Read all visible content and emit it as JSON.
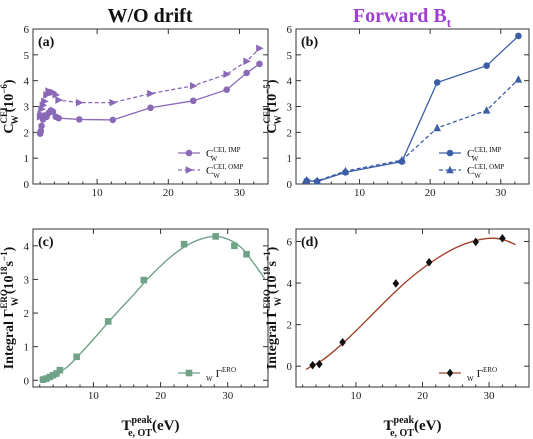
{
  "titles": {
    "left": "W/O drift",
    "right": "Forward B",
    "right_sub": "t"
  },
  "x_axis_label": {
    "main": "T",
    "sup": "peak",
    "sub": "e, OT",
    "unit": "(eV)"
  },
  "colors": {
    "purple": "#8a69b7",
    "title_purple": "#9c3fd2",
    "blue": "#3b5ea6",
    "green": "#6fa287",
    "brown": "#a0432c"
  },
  "chart_data": [
    {
      "type": "line",
      "panel": "(a)",
      "ylabel": {
        "main": "C",
        "sup": "CEI",
        "sub": "W",
        "unit": "(10",
        "exp": "−6",
        "close": ")"
      },
      "xlim": [
        1,
        34
      ],
      "ylim": [
        0,
        6
      ],
      "xticks": [
        10,
        20,
        30
      ],
      "yticks": [
        0,
        1,
        2,
        3,
        4,
        5,
        6
      ],
      "legend_position": "bottom-right",
      "series": [
        {
          "name": "C",
          "name_sup": "CEI, IMP",
          "name_sub": "W",
          "marker": "circle",
          "dash": false,
          "color": "#8a69b7",
          "x": [
            2.0,
            2.1,
            2.2,
            2.4,
            2.6,
            2.9,
            3.2,
            3.5,
            3.8,
            4.2,
            4.6,
            7.5,
            12.2,
            17.5,
            23.5,
            28.2,
            31.0,
            32.8
          ],
          "y": [
            1.95,
            2.05,
            2.25,
            2.5,
            2.65,
            2.6,
            2.75,
            2.85,
            2.8,
            2.6,
            2.55,
            2.5,
            2.48,
            2.95,
            3.22,
            3.65,
            4.3,
            4.65
          ]
        },
        {
          "name": "C",
          "name_sup": "CEI, OMP",
          "name_sub": "W",
          "marker": "triangle-right",
          "dash": true,
          "color": "#8a69b7",
          "x": [
            2.0,
            2.1,
            2.2,
            2.4,
            2.6,
            2.9,
            3.2,
            3.5,
            3.8,
            4.2,
            4.6,
            7.5,
            12.2,
            17.5,
            23.5,
            28.2,
            31.0,
            32.8
          ],
          "y": [
            2.6,
            2.7,
            2.9,
            3.05,
            3.2,
            3.45,
            3.6,
            3.55,
            3.55,
            3.45,
            3.25,
            3.15,
            3.15,
            3.5,
            3.8,
            4.25,
            4.75,
            5.25
          ]
        }
      ]
    },
    {
      "type": "line",
      "panel": "(b)",
      "ylabel": {
        "main": "C",
        "sup": "CEI",
        "sub": "W",
        "unit": "(10",
        "exp": "−5",
        "close": ")"
      },
      "xlim": [
        1,
        34
      ],
      "ylim": [
        0,
        6
      ],
      "xticks": [
        10,
        20,
        30
      ],
      "yticks": [
        0,
        1,
        2,
        3,
        4,
        5,
        6
      ],
      "legend_position": "bottom-right",
      "series": [
        {
          "name": "C",
          "name_sup": "CEI, IMP",
          "name_sub": "W",
          "marker": "circle",
          "dash": false,
          "color": "#3b5ea6",
          "x": [
            2.5,
            4.0,
            8.0,
            16.0,
            21.0,
            28.0,
            32.5
          ],
          "y": [
            0.12,
            0.1,
            0.45,
            0.87,
            3.93,
            4.58,
            5.73
          ]
        },
        {
          "name": "C",
          "name_sup": "CEI, OMP",
          "name_sub": "W",
          "marker": "triangle-up",
          "dash": true,
          "color": "#3b5ea6",
          "x": [
            2.5,
            4.0,
            8.0,
            16.0,
            21.0,
            28.0,
            32.5
          ],
          "y": [
            0.15,
            0.12,
            0.5,
            0.92,
            2.17,
            2.85,
            4.05
          ]
        }
      ]
    },
    {
      "type": "line",
      "panel": "(c)",
      "ylabel": {
        "main": "Integral Γ",
        "sup": "ERO",
        "sub": "W",
        "unit": "(10",
        "exp": "18",
        "close": "s",
        "exp2": "−1",
        "end": ")"
      },
      "xlim": [
        1,
        36
      ],
      "ylim": [
        -0.2,
        4.5
      ],
      "xticks": [
        10,
        20,
        30
      ],
      "yticks": [
        0,
        1,
        2,
        3,
        4
      ],
      "legend_position": "bottom-right",
      "series": [
        {
          "name": "Γ",
          "name_sup": "ERO",
          "name_sub": "W",
          "marker": "square",
          "dash": false,
          "color": "#6fa287",
          "x": [
            2.5,
            3.0,
            3.5,
            4.0,
            4.5,
            5.0,
            7.5,
            12.2,
            17.5,
            23.5,
            28.2,
            31.0,
            32.8
          ],
          "y": [
            0.02,
            0.05,
            0.1,
            0.15,
            0.2,
            0.3,
            0.7,
            1.75,
            2.98,
            4.05,
            4.28,
            4.0,
            3.75
          ],
          "curve_x": [
            2,
            4,
            6,
            8,
            10,
            12,
            14,
            16,
            18,
            20,
            22,
            24,
            26,
            28,
            30,
            32,
            34,
            35.5
          ],
          "curve_y": [
            0.0,
            0.15,
            0.38,
            0.78,
            1.22,
            1.68,
            2.12,
            2.55,
            3.0,
            3.4,
            3.75,
            4.02,
            4.2,
            4.28,
            4.2,
            3.95,
            3.45,
            3.02
          ]
        }
      ]
    },
    {
      "type": "line",
      "panel": "(d)",
      "ylabel": {
        "main": "Integral Γ",
        "sup": "ERO",
        "sub": "W",
        "unit": "(10",
        "exp": "19",
        "close": "s",
        "exp2": "−1",
        "end": ")"
      },
      "xlim": [
        1,
        36
      ],
      "ylim": [
        -1,
        6.6
      ],
      "xticks": [
        10,
        20,
        30
      ],
      "yticks": [
        0,
        2,
        4,
        6
      ],
      "legend_position": "bottom-right",
      "series": [
        {
          "name": "Γ",
          "name_sup": "ERO",
          "name_sub": "W",
          "marker": "diamond",
          "dash": false,
          "color": "#a0432c",
          "x": [
            3.5,
            4.5,
            8.0,
            16.0,
            21.0,
            28.0,
            32.0
          ],
          "y": [
            0.05,
            0.1,
            1.15,
            3.98,
            5.0,
            5.98,
            6.15
          ],
          "curve_x": [
            2.5,
            5,
            7.5,
            10,
            12.5,
            15,
            17.5,
            20,
            22.5,
            25,
            27.5,
            30,
            32,
            34
          ],
          "curve_y": [
            -0.15,
            0.3,
            0.95,
            1.7,
            2.5,
            3.3,
            4.05,
            4.7,
            5.25,
            5.7,
            6.0,
            6.15,
            6.1,
            5.85
          ]
        }
      ]
    }
  ]
}
